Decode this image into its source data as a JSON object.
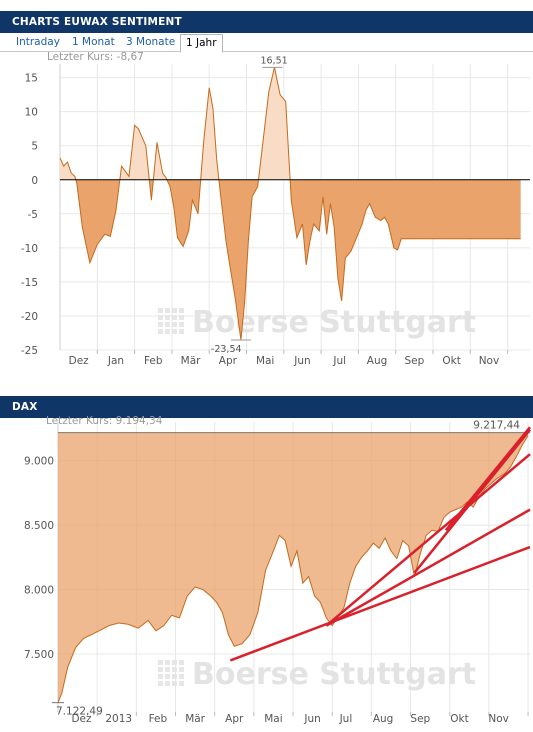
{
  "panel1": {
    "title": "CHARTS EUWAX SENTIMENT",
    "tabs": [
      "Intraday",
      "1 Monat",
      "3 Monate",
      "1 Jahr"
    ],
    "active_tab": "1 Jahr",
    "last_label": "Letzter Kurs: -8,67",
    "max_label": "16,51",
    "min_label": "-23,54"
  },
  "panel2": {
    "title": "DAX",
    "last_label": "Letzter Kurs: 9.194,34",
    "max_label": "9.217,44",
    "min_label": "7.122,49"
  },
  "watermark": "Boerse Stuttgart",
  "colors": {
    "header_bg": "#0f3667",
    "fill": "#eaa36b",
    "fill_light": "#f8dcc6",
    "line": "#c56a1c",
    "trendline": "#d9202b",
    "grid": "#e8e8e8"
  },
  "chart_data": [
    {
      "type": "area",
      "title": "CHARTS EUWAX SENTIMENT",
      "ylim": [
        -25,
        17
      ],
      "yticks": [
        15,
        10,
        5,
        0,
        -5,
        -10,
        -15,
        -20,
        -25
      ],
      "ytick_labels": [
        "15",
        "10",
        "5",
        "0",
        "-5",
        "-10",
        "-15",
        "-20",
        "-25"
      ],
      "x_labels": [
        "Dez",
        "Jan",
        "Feb",
        "Mär",
        "Apr",
        "Mai",
        "Jun",
        "Jul",
        "Aug",
        "Sep",
        "Okt",
        "Nov"
      ],
      "x_positions": [
        0.5,
        1.5,
        2.5,
        3.5,
        4.5,
        5.5,
        6.5,
        7.5,
        8.5,
        9.5,
        10.5,
        11.5
      ],
      "xlim": [
        0,
        12.6
      ],
      "x": [
        0.0,
        0.1,
        0.2,
        0.3,
        0.4,
        0.45,
        0.6,
        0.8,
        1.0,
        1.2,
        1.35,
        1.5,
        1.65,
        1.85,
        2.0,
        2.1,
        2.3,
        2.45,
        2.6,
        2.75,
        2.85,
        2.95,
        3.05,
        3.15,
        3.3,
        3.45,
        3.55,
        3.7,
        3.85,
        4.0,
        4.1,
        4.2,
        4.3,
        4.45,
        4.55,
        4.7,
        4.85,
        4.95,
        5.05,
        5.15,
        5.3,
        5.45,
        5.6,
        5.75,
        5.9,
        6.05,
        6.2,
        6.35,
        6.5,
        6.6,
        6.7,
        6.8,
        6.95,
        7.05,
        7.15,
        7.25,
        7.35,
        7.45,
        7.55,
        7.65,
        7.8,
        7.95,
        8.1,
        8.2,
        8.3,
        8.45,
        8.6,
        8.7,
        8.8,
        8.95,
        9.05,
        9.15,
        9.3,
        9.45,
        9.55,
        9.7,
        9.85,
        9.95,
        10.1,
        10.2,
        10.3,
        10.45,
        10.55,
        10.7,
        10.85,
        11.0,
        11.15,
        11.3,
        11.45,
        11.6,
        11.7,
        11.85,
        12.0,
        12.15,
        12.25,
        12.35
      ],
      "values": [
        3.2,
        2.0,
        2.6,
        1.0,
        0.5,
        -0.5,
        -7.0,
        -12.2,
        -9.5,
        -8.0,
        -8.3,
        -4.5,
        2.0,
        0.5,
        8.0,
        7.5,
        5.0,
        -3.0,
        5.5,
        1.0,
        0.2,
        -1.0,
        -4.0,
        -8.5,
        -9.8,
        -7.5,
        -3.0,
        -5.0,
        5.5,
        13.5,
        10.5,
        3.0,
        -2.0,
        -9.0,
        -12.5,
        -17.5,
        -23.5,
        -18.0,
        -9.0,
        -2.5,
        -1.0,
        6.0,
        13.0,
        16.5,
        12.5,
        11.5,
        -3.0,
        -8.5,
        -6.5,
        -12.5,
        -9.0,
        -6.5,
        -7.5,
        -2.5,
        -8.0,
        -3.5,
        -7.0,
        -14.5,
        -17.8,
        -11.5,
        -10.5,
        -8.5,
        -6.5,
        -4.5,
        -3.5,
        -5.5,
        -6.0,
        -5.5,
        -6.5,
        -10.0,
        -10.3,
        -8.67,
        -8.67,
        -8.67,
        -8.67,
        -8.67,
        -8.67,
        -8.67,
        -8.67,
        -8.67,
        -8.67,
        -8.67,
        -8.67,
        -8.67,
        -8.67,
        -8.67,
        -8.67,
        -8.67,
        -8.67,
        -8.67,
        -8.67,
        -8.67,
        -8.67,
        -8.67,
        -8.67,
        -8.67
      ],
      "last": -8.67,
      "max": 16.51,
      "min": -23.54
    },
    {
      "type": "area",
      "title": "DAX",
      "ylim": [
        7050,
        9300
      ],
      "yticks": [
        9000,
        8500,
        8000,
        7500
      ],
      "ytick_labels": [
        "9.000",
        "8.500",
        "8.000",
        "7.500"
      ],
      "x_labels": [
        "Dez",
        "2013",
        "Feb",
        "Mär",
        "Apr",
        "Mai",
        "Jun",
        "Jul",
        "Aug",
        "Sep",
        "Okt",
        "Nov"
      ],
      "x_positions": [
        0.6,
        1.55,
        2.55,
        3.5,
        4.5,
        5.5,
        6.5,
        7.35,
        8.3,
        9.25,
        10.25,
        11.25
      ],
      "xlim": [
        0,
        12.05
      ],
      "x": [
        0.0,
        0.1,
        0.25,
        0.45,
        0.65,
        0.85,
        1.05,
        1.3,
        1.55,
        1.8,
        2.05,
        2.3,
        2.5,
        2.7,
        2.9,
        3.1,
        3.3,
        3.5,
        3.7,
        3.9,
        4.05,
        4.2,
        4.35,
        4.5,
        4.7,
        4.9,
        5.1,
        5.3,
        5.5,
        5.65,
        5.8,
        5.95,
        6.1,
        6.25,
        6.4,
        6.55,
        6.7,
        6.85,
        7.0,
        7.15,
        7.3,
        7.45,
        7.6,
        7.75,
        7.9,
        8.05,
        8.2,
        8.35,
        8.5,
        8.65,
        8.8,
        8.95,
        9.1,
        9.25,
        9.4,
        9.55,
        9.7,
        9.85,
        10.0,
        10.15,
        10.3,
        10.45,
        10.6,
        10.75,
        10.9,
        11.05,
        11.2,
        11.4,
        11.55,
        11.7,
        11.85,
        12.0
      ],
      "values": [
        7122,
        7200,
        7400,
        7550,
        7620,
        7650,
        7680,
        7720,
        7740,
        7730,
        7700,
        7760,
        7680,
        7720,
        7800,
        7780,
        7950,
        8020,
        8000,
        7950,
        7900,
        7820,
        7650,
        7560,
        7580,
        7650,
        7820,
        8150,
        8300,
        8420,
        8380,
        8180,
        8300,
        8050,
        8100,
        7950,
        7900,
        7780,
        7720,
        7790,
        7860,
        8050,
        8180,
        8250,
        8300,
        8360,
        8320,
        8400,
        8300,
        8240,
        8380,
        8340,
        8100,
        8280,
        8420,
        8460,
        8450,
        8560,
        8600,
        8620,
        8640,
        8680,
        8640,
        8720,
        8780,
        8820,
        8860,
        8900,
        8950,
        9030,
        9120,
        9194
      ],
      "last": 9194.34,
      "max": 9217.44,
      "min": 7122.49
    }
  ]
}
